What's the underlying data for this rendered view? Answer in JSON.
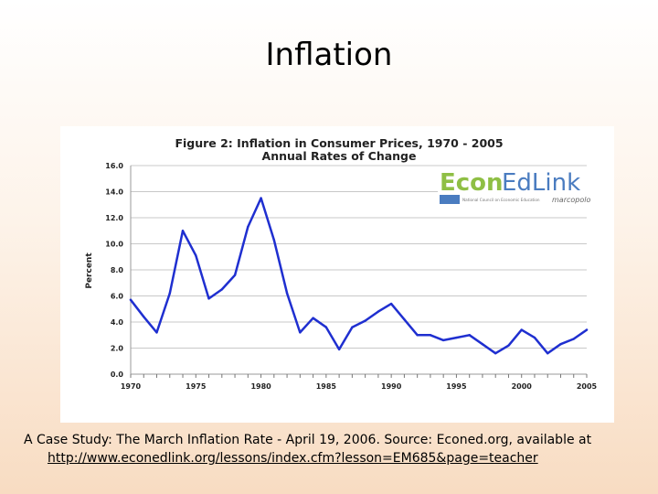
{
  "slide": {
    "title": "Inflation",
    "caption": "A Case Study: The March Inflation Rate - April 19, 2006.   Source: Econed.org, available at",
    "link": "http://www.econedlink.org/lessons/index.cfm?lesson=EM685&page=teacher"
  },
  "logo": {
    "brand_econ": "Econ",
    "brand_edlink": "EdLink",
    "brand_sub": "National Council on Economic Education",
    "brand_partner": "marcopolo",
    "colors": {
      "econ": "#8fbf45",
      "edlink": "#4a7cc0"
    }
  },
  "chart_data": {
    "type": "line",
    "title": "Figure 2: Inflation in Consumer Prices, 1970 - 2005",
    "subtitle": "Annual Rates of Change",
    "xlabel": "",
    "ylabel": "Percent",
    "xlim": [
      1970,
      2005
    ],
    "ylim": [
      0,
      16
    ],
    "grid": true,
    "x_ticks": [
      "1970",
      "1975",
      "1980",
      "1985",
      "1990",
      "1995",
      "2000",
      "2005"
    ],
    "y_ticks": [
      "0.0",
      "2.0",
      "4.0",
      "6.0",
      "8.0",
      "10.0",
      "12.0",
      "14.0",
      "16.0"
    ],
    "series": [
      {
        "name": "Inflation",
        "color": "#1f2fd0",
        "x": [
          1970,
          1971,
          1972,
          1973,
          1974,
          1975,
          1976,
          1977,
          1978,
          1979,
          1980,
          1981,
          1982,
          1983,
          1984,
          1985,
          1986,
          1987,
          1988,
          1989,
          1990,
          1991,
          1992,
          1993,
          1994,
          1995,
          1996,
          1997,
          1998,
          1999,
          2000,
          2001,
          2002,
          2003,
          2004,
          2005
        ],
        "values": [
          5.7,
          4.4,
          3.2,
          6.2,
          11.0,
          9.1,
          5.8,
          6.5,
          7.6,
          11.3,
          13.5,
          10.3,
          6.2,
          3.2,
          4.3,
          3.6,
          1.9,
          3.6,
          4.1,
          4.8,
          5.4,
          4.2,
          3.0,
          3.0,
          2.6,
          2.8,
          3.0,
          2.3,
          1.6,
          2.2,
          3.4,
          2.8,
          1.6,
          2.3,
          2.7,
          3.4
        ]
      }
    ]
  }
}
